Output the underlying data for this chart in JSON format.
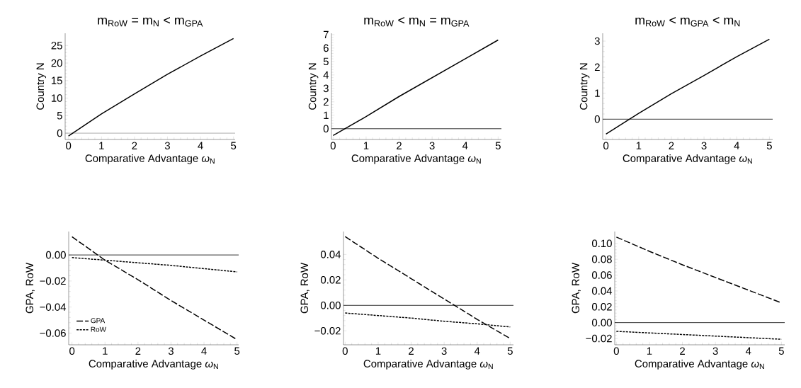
{
  "chart_data": [
    {
      "type": "line",
      "title": "m$_{RoW}$ = m$_{N}$ < m$_{GPA}$",
      "xlabel": "Comparative Advantage *ω*$_{N}$",
      "ylabel": "Country N",
      "x": [
        0,
        1,
        2,
        3,
        4,
        5
      ],
      "xlim": [
        -0.1,
        5.05
      ],
      "xticks": [
        0,
        1,
        2,
        3,
        4,
        5
      ],
      "ylim": [
        -1.8,
        28.5
      ],
      "yticks": [
        0,
        5,
        10,
        15,
        20,
        25
      ],
      "series": [
        {
          "color": "#000000",
          "line_style": "solid",
          "values": [
            -0.8,
            5.5,
            11.2,
            16.8,
            22,
            27
          ]
        }
      ],
      "ref_lines": [
        {
          "axis": "y",
          "value": 0,
          "color": "#999999"
        }
      ]
    },
    {
      "type": "line",
      "title": "m$_{RoW}$ < m$_{N}$ = m$_{GPA}$",
      "xlabel": "Comparative Advantage *ω*$_{N}$",
      "ylabel": "Country N",
      "x": [
        0,
        1,
        2,
        3,
        4,
        5
      ],
      "xlim": [
        -0.05,
        5.1
      ],
      "xticks": [
        0,
        1,
        2,
        3,
        4,
        5
      ],
      "ylim": [
        -0.8,
        7.1
      ],
      "yticks": [
        0,
        1,
        2,
        3,
        4,
        5,
        6,
        7
      ],
      "series": [
        {
          "color": "#000000",
          "line_style": "solid",
          "values": [
            -0.5,
            0.9,
            2.4,
            3.8,
            5.2,
            6.6
          ]
        }
      ],
      "ref_lines": [
        {
          "axis": "y",
          "value": 0,
          "color": "#000000"
        }
      ]
    },
    {
      "type": "line",
      "title": "m$_{RoW}$ < m$_{GPA}$ < m$_{N}$",
      "xlabel": "Comparative Advantage *ω*$_{N}$",
      "ylabel": "Country N",
      "x": [
        0,
        1,
        2,
        3,
        4,
        5
      ],
      "xlim": [
        -0.1,
        5.1
      ],
      "xticks": [
        0,
        1,
        2,
        3,
        4,
        5
      ],
      "ylim": [
        -0.78,
        3.3
      ],
      "yticks": [
        0,
        1,
        2,
        3
      ],
      "series": [
        {
          "color": "#000000",
          "line_style": "solid",
          "values": [
            -0.57,
            0.22,
            0.98,
            1.68,
            2.4,
            3.07
          ]
        }
      ],
      "ref_lines": [
        {
          "axis": "y",
          "value": 0,
          "color": "#000000"
        }
      ]
    },
    {
      "type": "line",
      "xlabel": "Comparative Advantage *ω*$_{N}$",
      "ylabel": "GPA, RoW",
      "x": [
        0,
        1,
        2,
        3,
        4,
        5
      ],
      "xlim": [
        -0.1,
        5.05
      ],
      "xticks": [
        0,
        1,
        2,
        3,
        4,
        5
      ],
      "ylim": [
        -0.069,
        0.018
      ],
      "yticks": [
        {
          "value": -0.06,
          "label": "−0.06"
        },
        {
          "value": -0.04,
          "label": "−0.04"
        },
        {
          "value": -0.02,
          "label": "−0.02"
        },
        {
          "value": 0,
          "label": "0.00"
        }
      ],
      "legend": "bottom left",
      "series": [
        {
          "name": "GPA",
          "color": "#000000",
          "line_style": "dashed",
          "values": [
            0.014,
            -0.004,
            -0.019,
            -0.035,
            -0.05,
            -0.065
          ]
        },
        {
          "name": "RoW",
          "color": "#000000",
          "line_style": "dotted",
          "values": [
            -0.002,
            -0.004,
            -0.006,
            -0.008,
            -0.0105,
            -0.013
          ]
        }
      ],
      "ref_lines": [
        {
          "axis": "y",
          "value": 0,
          "color": "#000000"
        }
      ]
    },
    {
      "type": "line",
      "xlabel": "Comparative Advantage *ω*$_{N}$",
      "ylabel": "GPA, RoW",
      "x": [
        0,
        1,
        2,
        3,
        4,
        5
      ],
      "xlim": [
        -0.05,
        5.1
      ],
      "xticks": [
        0,
        1,
        2,
        3,
        4,
        5
      ],
      "ylim": [
        -0.031,
        0.058
      ],
      "yticks": [
        {
          "value": -0.02,
          "label": "−0.02"
        },
        {
          "value": 0,
          "label": "0.00"
        },
        {
          "value": 0.02,
          "label": "0.02"
        },
        {
          "value": 0.04,
          "label": "0.04"
        }
      ],
      "series": [
        {
          "color": "#000000",
          "line_style": "dashed",
          "values": [
            0.054,
            0.037,
            0.021,
            0.005,
            -0.011,
            -0.026
          ]
        },
        {
          "color": "#000000",
          "line_style": "dotted",
          "values": [
            -0.006,
            -0.008,
            -0.01,
            -0.0125,
            -0.0145,
            -0.017
          ]
        }
      ],
      "ref_lines": [
        {
          "axis": "y",
          "value": 0,
          "color": "#000000"
        }
      ]
    },
    {
      "type": "line",
      "xlabel": "Comparative Advantage *ω*$_{N}$",
      "ylabel": "GPA, RoW",
      "x": [
        0,
        1,
        2,
        3,
        4,
        5
      ],
      "xlim": [
        -0.05,
        5.1
      ],
      "xticks": [
        0,
        1,
        2,
        3,
        4,
        5
      ],
      "ylim": [
        -0.028,
        0.115
      ],
      "yticks": [
        {
          "value": -0.02,
          "label": "−0.02"
        },
        {
          "value": 0,
          "label": "0.00"
        },
        {
          "value": 0.02,
          "label": "0.02"
        },
        {
          "value": 0.04,
          "label": "0.04"
        },
        {
          "value": 0.06,
          "label": "0.06"
        },
        {
          "value": 0.08,
          "label": "0.08"
        },
        {
          "value": 0.1,
          "label": "0.10"
        }
      ],
      "series": [
        {
          "color": "#000000",
          "line_style": "dashed",
          "values": [
            0.108,
            0.09,
            0.073,
            0.057,
            0.041,
            0.025
          ]
        },
        {
          "color": "#000000",
          "line_style": "dotted",
          "values": [
            -0.011,
            -0.013,
            -0.015,
            -0.017,
            -0.019,
            -0.021
          ]
        }
      ],
      "ref_lines": [
        {
          "axis": "y",
          "value": 0,
          "color": "#000000"
        }
      ]
    }
  ]
}
